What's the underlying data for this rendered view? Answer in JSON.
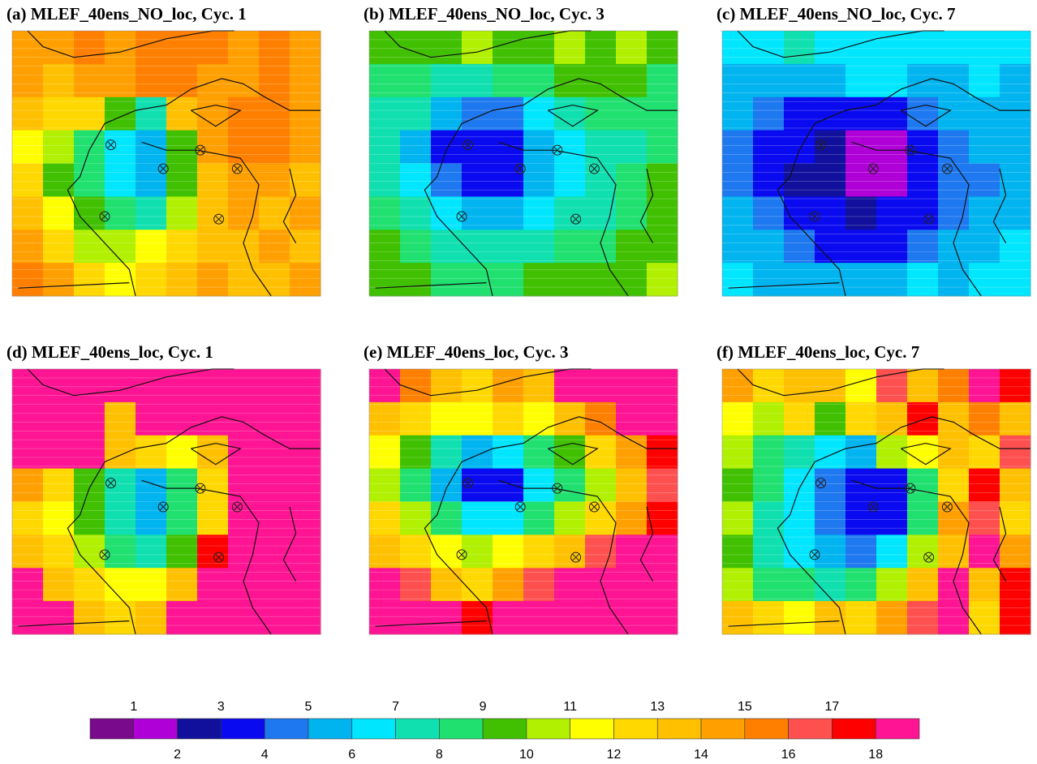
{
  "panels": [
    {
      "title": "(a) MLEF_40ens_NO_loc, Cyc. 1",
      "values": [
        [
          14,
          14,
          15,
          14,
          15,
          15,
          15,
          14,
          15,
          14
        ],
        [
          14,
          13,
          14,
          14,
          15,
          15,
          14,
          14,
          15,
          14
        ],
        [
          13,
          12,
          12,
          9,
          7,
          13,
          14,
          15,
          15,
          14
        ],
        [
          11,
          10,
          8,
          6,
          5,
          9,
          14,
          15,
          15,
          14
        ],
        [
          12,
          9,
          8,
          6,
          5,
          9,
          13,
          14,
          14,
          13
        ],
        [
          13,
          11,
          9,
          8,
          7,
          10,
          13,
          14,
          13,
          14
        ],
        [
          14,
          12,
          10,
          10,
          11,
          12,
          13,
          13,
          14,
          13
        ],
        [
          15,
          14,
          12,
          11,
          12,
          13,
          14,
          13,
          13,
          14
        ]
      ]
    },
    {
      "title": "(b) MLEF_40ens_NO_loc, Cyc. 3",
      "values": [
        [
          9,
          9,
          9,
          10,
          9,
          9,
          10,
          9,
          10,
          9
        ],
        [
          8,
          8,
          7,
          7,
          8,
          8,
          9,
          9,
          9,
          8
        ],
        [
          7,
          7,
          5,
          4,
          4,
          6,
          7,
          8,
          8,
          8
        ],
        [
          7,
          5,
          3,
          3,
          3,
          5,
          6,
          7,
          7,
          8
        ],
        [
          7,
          6,
          4,
          3,
          3,
          5,
          6,
          7,
          8,
          9
        ],
        [
          8,
          7,
          6,
          5,
          5,
          6,
          7,
          7,
          8,
          9
        ],
        [
          9,
          8,
          7,
          7,
          7,
          7,
          8,
          8,
          9,
          9
        ],
        [
          9,
          9,
          8,
          8,
          8,
          9,
          9,
          9,
          9,
          10
        ]
      ]
    },
    {
      "title": "(c) MLEF_40ens_NO_loc, Cyc. 7",
      "values": [
        [
          6,
          6,
          7,
          6,
          6,
          6,
          6,
          6,
          6,
          6
        ],
        [
          5,
          5,
          5,
          5,
          6,
          6,
          5,
          5,
          6,
          5
        ],
        [
          5,
          4,
          3,
          3,
          3,
          3,
          4,
          5,
          5,
          5
        ],
        [
          4,
          3,
          3,
          2,
          1,
          1,
          3,
          4,
          5,
          5
        ],
        [
          4,
          3,
          2,
          2,
          1,
          1,
          3,
          4,
          4,
          5
        ],
        [
          5,
          4,
          3,
          3,
          2,
          3,
          3,
          4,
          5,
          5
        ],
        [
          5,
          5,
          4,
          3,
          3,
          3,
          4,
          5,
          5,
          6
        ],
        [
          6,
          5,
          5,
          5,
          5,
          5,
          6,
          5,
          6,
          6
        ]
      ]
    },
    {
      "title": "(d) MLEF_40ens_loc, Cyc. 1",
      "values": [
        [
          18,
          18,
          18,
          18,
          18,
          18,
          18,
          18,
          18,
          18
        ],
        [
          18,
          18,
          18,
          13,
          18,
          18,
          18,
          18,
          18,
          18
        ],
        [
          18,
          18,
          18,
          13,
          12,
          11,
          13,
          18,
          18,
          18
        ],
        [
          14,
          12,
          9,
          7,
          5,
          8,
          12,
          18,
          18,
          18
        ],
        [
          12,
          11,
          9,
          7,
          5,
          8,
          12,
          18,
          18,
          18
        ],
        [
          13,
          12,
          10,
          8,
          7,
          9,
          17,
          18,
          18,
          18
        ],
        [
          18,
          13,
          12,
          11,
          11,
          13,
          18,
          18,
          18,
          18
        ],
        [
          18,
          18,
          13,
          12,
          13,
          18,
          18,
          18,
          18,
          18
        ]
      ]
    },
    {
      "title": "(e) MLEF_40ens_loc, Cyc. 3",
      "values": [
        [
          18,
          15,
          13,
          12,
          14,
          13,
          18,
          18,
          18,
          18
        ],
        [
          13,
          12,
          11,
          11,
          12,
          11,
          13,
          15,
          18,
          18
        ],
        [
          11,
          9,
          7,
          5,
          6,
          8,
          9,
          12,
          14,
          17
        ],
        [
          10,
          8,
          5,
          3,
          3,
          6,
          8,
          10,
          13,
          16
        ],
        [
          12,
          10,
          8,
          6,
          6,
          8,
          10,
          12,
          14,
          17
        ],
        [
          13,
          12,
          11,
          10,
          11,
          12,
          13,
          16,
          18,
          18
        ],
        [
          18,
          16,
          13,
          12,
          14,
          16,
          18,
          18,
          18,
          18
        ],
        [
          18,
          18,
          18,
          17,
          18,
          18,
          18,
          18,
          18,
          18
        ]
      ]
    },
    {
      "title": "(f) MLEF_40ens_loc, Cyc. 7",
      "values": [
        [
          14,
          12,
          13,
          13,
          11,
          16,
          13,
          15,
          18,
          17
        ],
        [
          11,
          10,
          12,
          9,
          12,
          13,
          17,
          13,
          15,
          13
        ],
        [
          10,
          8,
          7,
          6,
          5,
          10,
          11,
          13,
          12,
          16
        ],
        [
          9,
          8,
          6,
          4,
          3,
          3,
          8,
          12,
          17,
          13
        ],
        [
          10,
          7,
          6,
          4,
          3,
          3,
          8,
          14,
          16,
          12
        ],
        [
          9,
          7,
          6,
          5,
          4,
          6,
          10,
          13,
          18,
          14
        ],
        [
          10,
          8,
          8,
          7,
          8,
          10,
          13,
          18,
          13,
          17
        ],
        [
          13,
          12,
          11,
          13,
          12,
          14,
          16,
          18,
          12,
          17
        ]
      ]
    }
  ],
  "colorbar": {
    "levels": [
      1,
      2,
      3,
      4,
      5,
      6,
      7,
      8,
      9,
      10,
      11,
      12,
      13,
      14,
      15,
      16,
      17,
      18
    ],
    "colors": [
      "#7a0a8c",
      "#b000d8",
      "#10109c",
      "#0a0af0",
      "#1e78f0",
      "#00b4f0",
      "#00e6ff",
      "#10e0b0",
      "#20e070",
      "#40c000",
      "#b0f000",
      "#ffff00",
      "#ffd800",
      "#ffc000",
      "#ffa000",
      "#ff8000",
      "#ff5050",
      "#ff0000",
      "#ff1493"
    ]
  }
}
